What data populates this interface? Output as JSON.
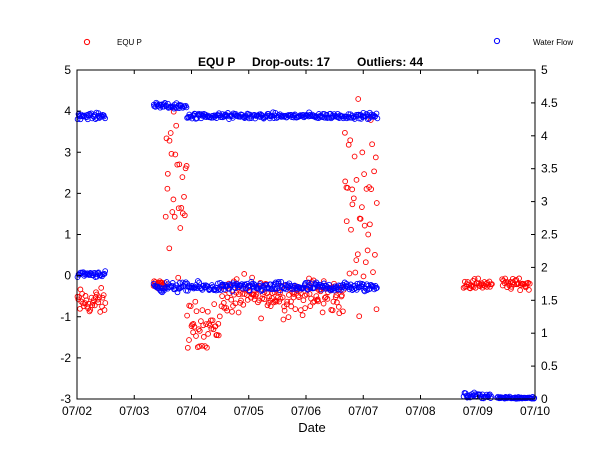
{
  "chart_data": {
    "type": "scatter",
    "title": {
      "name": "EQU P",
      "dropouts": "Drop-outs: 17",
      "outliers": "Outliers: 44"
    },
    "xlabel": "Date",
    "ylabel_left": "",
    "ylabel_right": "",
    "x_ticks": [
      "07/02",
      "07/03",
      "07/04",
      "07/05",
      "07/06",
      "07/07",
      "07/08",
      "07/09",
      "07/10"
    ],
    "xlim": [
      "07/02",
      "07/10"
    ],
    "ylim_left": [
      -3,
      5
    ],
    "ylim_right": [
      0,
      5
    ],
    "y_ticks_left": [
      "-3",
      "-2",
      "-1",
      "0",
      "1",
      "2",
      "3",
      "4",
      "5"
    ],
    "y_ticks_right": [
      "0",
      "0.5",
      "1",
      "1.5",
      "2",
      "2.5",
      "3",
      "3.5",
      "4",
      "4.5",
      "5"
    ],
    "grid": false,
    "legend": {
      "left_entry": "EQU P",
      "right_entry": "Water Flow",
      "placement": "top, outside plot"
    },
    "series": [
      {
        "name": "EQU P",
        "axis": "left",
        "color": "#ff0000",
        "marker": "open-circle",
        "segments": [
          {
            "x_start": "07/02 00:00",
            "x_end": "07/02 12:00",
            "y_level": -0.65,
            "y_spread": 0.35
          },
          {
            "x_start": "07/03 08:00",
            "x_end": "07/03 13:00",
            "y_level": -0.2,
            "y_spread": 0.1
          },
          {
            "x_start": "07/03 13:00",
            "x_end": "07/03 22:00",
            "y_level": 2.0,
            "y_spread": 2.2
          },
          {
            "x_start": "07/03 22:00",
            "x_end": "07/04 12:00",
            "y_level": -1.2,
            "y_spread": 0.6
          },
          {
            "x_start": "07/04 12:00",
            "x_end": "07/06 16:00",
            "y_level": -0.5,
            "y_spread": 0.5
          },
          {
            "x_start": "07/06 16:00",
            "x_end": "07/07 06:00",
            "y_level": 1.8,
            "y_spread": 2.4
          },
          {
            "x_start": "07/08 18:00",
            "x_end": "07/09 06:00",
            "y_level": -0.2,
            "y_spread": 0.15
          },
          {
            "x_start": "07/09 10:00",
            "x_end": "07/09 22:00",
            "y_level": -0.2,
            "y_spread": 0.15
          }
        ]
      },
      {
        "name": "Water Flow",
        "axis": "right",
        "color": "#0000ff",
        "marker": "open-circle",
        "segments": [
          {
            "x_start": "07/02 00:00",
            "x_end": "07/02 12:00",
            "y_level": 4.3,
            "y_spread": 0.05
          },
          {
            "x_start": "07/02 00:00",
            "x_end": "07/02 12:00",
            "y_level": 1.9,
            "y_spread": 0.05
          },
          {
            "x_start": "07/03 08:00",
            "x_end": "07/03 22:00",
            "y_level": 4.45,
            "y_spread": 0.05
          },
          {
            "x_start": "07/03 08:00",
            "x_end": "07/07 06:00",
            "y_level": 1.7,
            "y_spread": 0.08
          },
          {
            "x_start": "07/03 22:00",
            "x_end": "07/07 06:00",
            "y_level": 4.3,
            "y_spread": 0.05
          },
          {
            "x_start": "07/08 18:00",
            "x_end": "07/09 06:00",
            "y_level": 0.05,
            "y_spread": 0.05
          },
          {
            "x_start": "07/09 08:00",
            "x_end": "07/10 00:00",
            "y_level": 0.02,
            "y_spread": 0.02
          }
        ]
      }
    ]
  }
}
